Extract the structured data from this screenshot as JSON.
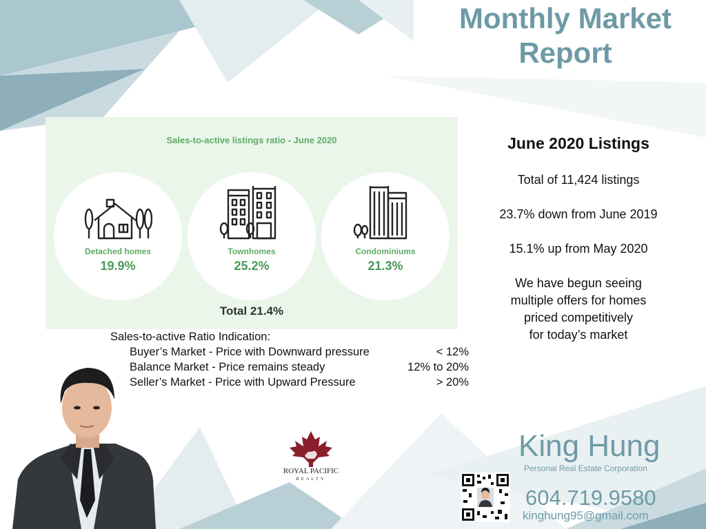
{
  "header": {
    "title_line1": "Monthly Market",
    "title_line2": "Report"
  },
  "infographic": {
    "title": "Sales-to-active listings ratio - June 2020",
    "items": [
      {
        "label": "Detached homes",
        "value": "19.9%",
        "icon": "detached-house-icon"
      },
      {
        "label": "Townhomes",
        "value": "25.2%",
        "icon": "townhomes-icon"
      },
      {
        "label": "Condominiums",
        "value": "21.3%",
        "icon": "condominiums-icon"
      }
    ],
    "total": "Total 21.4%"
  },
  "listings": {
    "heading": "June 2020 Listings",
    "line1": "Total of 11,424 listings",
    "line2": "23.7% down from June 2019",
    "line3": "15.1% up from May 2020",
    "note_lines": [
      "We have begun seeing",
      "multiple offers for homes",
      "priced competitively",
      "for today’s market"
    ]
  },
  "ratio_indication": {
    "heading": "Sales-to-active Ratio Indication:",
    "rows": [
      {
        "label": "Buyer’s Market - Price with Downward pressure",
        "value": "< 12%"
      },
      {
        "label": "Balance Market - Price remains steady",
        "value": "12% to 20%"
      },
      {
        "label": "Seller’s Market - Price with Upward Pressure",
        "value": "> 20%"
      }
    ]
  },
  "brokerage": {
    "name": "ROYAL PACIFIC",
    "sub": "REALTY"
  },
  "agent": {
    "name": "King Hung",
    "corporation": "Personal Real Estate Corporation",
    "phone": "604.719.9580",
    "email": "kinghung95@gmail.com"
  },
  "colors": {
    "accent": "#6e9aa6",
    "green": "#5eaa66",
    "panel_bg": "#eaf6ea"
  }
}
